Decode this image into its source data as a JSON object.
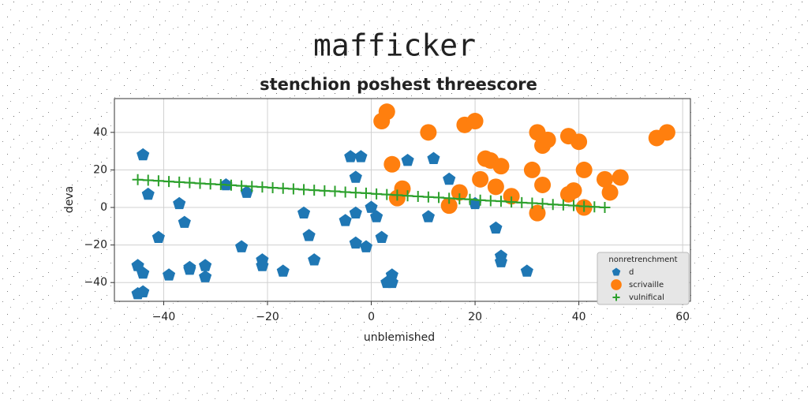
{
  "chart_data": {
    "type": "scatter",
    "title": "mafficker",
    "subtitle": "stenchion poshest threescore",
    "x_label": "unblemished",
    "y_label": "deva",
    "xlim": [
      -49.5,
      61.5
    ],
    "ylim": [
      -50,
      58
    ],
    "xticks": [
      {
        "value": -40,
        "label": "−40"
      },
      {
        "value": -20,
        "label": "−20"
      },
      0,
      20,
      40,
      60
    ],
    "yticks": [
      {
        "value": -40,
        "label": "−40"
      },
      {
        "value": -20,
        "label": "−20"
      },
      0,
      20,
      40
    ],
    "grid": true,
    "legend_title": "nonretrenchment",
    "legend_position": "lower right",
    "series": [
      {
        "name": "d",
        "color": "#1f77b4",
        "marker": "pentagon",
        "x": [
          -44,
          -43,
          -41,
          -39,
          -37,
          -36,
          -35,
          -35,
          -32,
          -32,
          -45,
          -44,
          -44,
          -45,
          -25,
          -28,
          -24,
          -21,
          -21,
          -17,
          -13,
          -12,
          -11,
          -5,
          -4,
          -3,
          -2,
          -3,
          -3,
          -1,
          0,
          1,
          2,
          3,
          4,
          4,
          7,
          11,
          12,
          15,
          20,
          24,
          25,
          25,
          30
        ],
        "values": [
          28,
          7,
          -16,
          -36,
          2,
          -8,
          -32,
          -33,
          -31,
          -37,
          -31,
          -35,
          -45,
          -46,
          -21,
          12,
          8,
          -28,
          -31,
          -34,
          -3,
          -15,
          -28,
          -7,
          27,
          16,
          27,
          -3,
          -19,
          -21,
          0,
          -5,
          -16,
          -40,
          -36,
          -40,
          25,
          -5,
          26,
          15,
          2,
          -11,
          -26,
          -29,
          -34
        ]
      },
      {
        "name": "scrivaille",
        "color": "#ff7f0e",
        "marker": "circle",
        "x": [
          2,
          3,
          4,
          5,
          6,
          11,
          15,
          17,
          18,
          20,
          21,
          22,
          23,
          24,
          25,
          27,
          31,
          32,
          33,
          34,
          33,
          32,
          38,
          38,
          39,
          40,
          41,
          41,
          45,
          46,
          48,
          55,
          57
        ],
        "values": [
          46,
          51,
          23,
          5,
          10,
          40,
          1,
          8,
          44,
          46,
          15,
          26,
          25,
          11,
          22,
          6,
          20,
          40,
          33,
          36,
          12,
          -3,
          38,
          7,
          9,
          35,
          20,
          0,
          15,
          8,
          16,
          37,
          40
        ]
      },
      {
        "name": "vulnifical",
        "color": "#2ca02c",
        "marker": "plus",
        "line": true,
        "x": [
          -45,
          -43,
          -41,
          -39,
          -37,
          -35,
          -33,
          -31,
          -29,
          -27,
          -25,
          -23,
          -21,
          -19,
          -17,
          -15,
          -13,
          -11,
          -9,
          -7,
          -5,
          -3,
          -1,
          1,
          3,
          5,
          7,
          9,
          11,
          13,
          15,
          17,
          19,
          21,
          23,
          25,
          27,
          29,
          31,
          33,
          35,
          37,
          39,
          41,
          43,
          45
        ],
        "values": [
          14.8,
          14.5,
          14.2,
          13.8,
          13.5,
          13.2,
          12.8,
          12.5,
          12.2,
          11.9,
          11.5,
          11.2,
          10.9,
          10.5,
          10.2,
          9.9,
          9.5,
          9.2,
          8.9,
          8.6,
          8.2,
          7.9,
          7.6,
          7.2,
          6.9,
          6.6,
          6.2,
          5.9,
          5.6,
          5.3,
          4.9,
          4.6,
          4.3,
          3.9,
          3.6,
          3.3,
          2.9,
          2.6,
          2.3,
          2.0,
          1.6,
          1.3,
          1.0,
          0.6,
          0.3,
          0.0
        ]
      }
    ]
  }
}
